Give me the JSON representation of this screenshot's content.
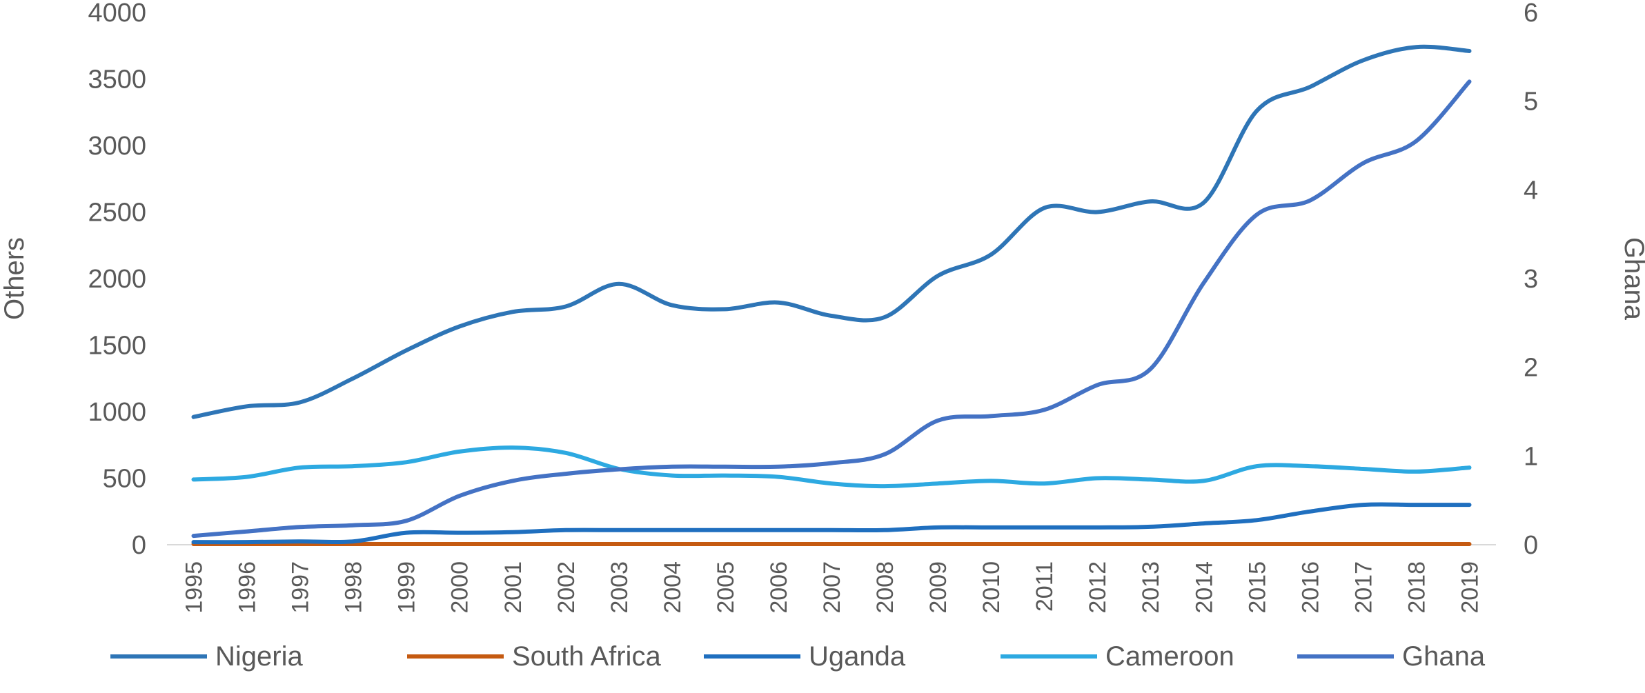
{
  "chart_data": {
    "type": "line",
    "x": [
      "1995",
      "1996",
      "1997",
      "1998",
      "1999",
      "2000",
      "2001",
      "2002",
      "2003",
      "2004",
      "2005",
      "2006",
      "2007",
      "2008",
      "2009",
      "2010",
      "2011",
      "2012",
      "2013",
      "2014",
      "2015",
      "2016",
      "2017",
      "2018",
      "2019"
    ],
    "y_left": {
      "label": "Others",
      "ylim": [
        0,
        4000
      ],
      "ticks": [
        "0",
        "500",
        "1000",
        "1500",
        "2000",
        "2500",
        "3000",
        "3500",
        "4000"
      ]
    },
    "y_right": {
      "label": "Ghana",
      "ylim": [
        0,
        6
      ],
      "ticks": [
        "0",
        "1",
        "2",
        "3",
        "4",
        "5",
        "6"
      ]
    },
    "grid": false,
    "legend_position": "bottom",
    "series": [
      {
        "name": "Nigeria",
        "axis": "left",
        "color": "#2E75B6",
        "values": [
          960,
          1040,
          1070,
          1250,
          1460,
          1640,
          1750,
          1790,
          1960,
          1800,
          1770,
          1820,
          1720,
          1710,
          2020,
          2180,
          2530,
          2500,
          2580,
          2570,
          3260,
          3440,
          3640,
          3740,
          3710
        ]
      },
      {
        "name": "South Africa",
        "axis": "left",
        "color": "#C55A11",
        "values": [
          5,
          5,
          5,
          5,
          5,
          5,
          5,
          5,
          5,
          5,
          5,
          5,
          5,
          5,
          5,
          5,
          5,
          5,
          5,
          5,
          5,
          5,
          5,
          5,
          5
        ]
      },
      {
        "name": "Uganda",
        "axis": "left",
        "color": "#1F6FBF",
        "values": [
          20,
          20,
          25,
          25,
          90,
          90,
          95,
          110,
          110,
          110,
          110,
          110,
          110,
          110,
          130,
          130,
          130,
          130,
          135,
          160,
          185,
          250,
          300,
          300,
          300
        ]
      },
      {
        "name": "Cameroon",
        "axis": "left",
        "color": "#2DA9E1",
        "values": [
          490,
          510,
          580,
          590,
          620,
          700,
          730,
          690,
          570,
          520,
          520,
          510,
          460,
          440,
          460,
          480,
          460,
          500,
          490,
          480,
          590,
          590,
          570,
          550,
          580
        ]
      },
      {
        "name": "Ghana",
        "axis": "right",
        "color": "#4472C4",
        "values": [
          0.1,
          0.15,
          0.2,
          0.22,
          0.27,
          0.55,
          0.72,
          0.8,
          0.85,
          0.88,
          0.88,
          0.88,
          0.92,
          1.02,
          1.4,
          1.45,
          1.52,
          1.8,
          1.98,
          2.95,
          3.72,
          3.88,
          4.3,
          4.55,
          5.22
        ]
      }
    ]
  }
}
